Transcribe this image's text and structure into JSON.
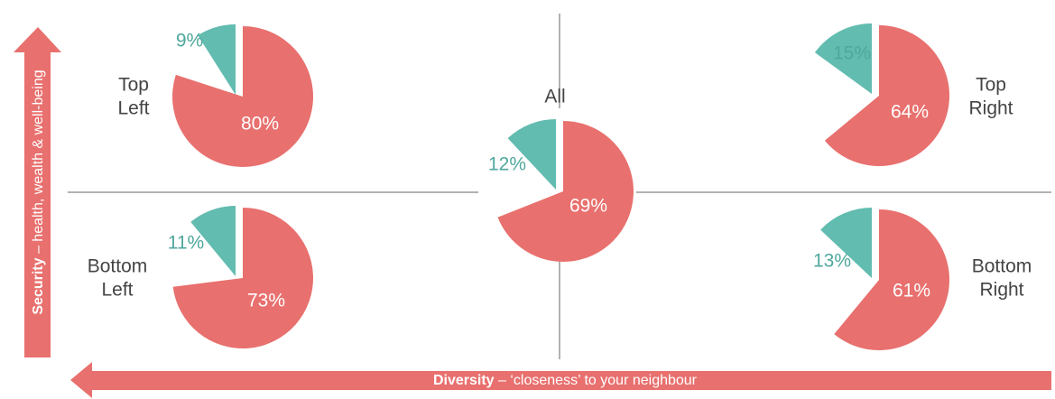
{
  "chart_data": [
    {
      "type": "pie",
      "title_lines": [
        "Top",
        "Left"
      ],
      "values": [
        80,
        9
      ],
      "value_labels": [
        "80%",
        "9%"
      ],
      "colors": [
        "#e8706e",
        "#62bcb0"
      ]
    },
    {
      "type": "pie",
      "title_lines": [
        "Bottom",
        "Left"
      ],
      "values": [
        73,
        11
      ],
      "value_labels": [
        "73%",
        "11%"
      ],
      "colors": [
        "#e8706e",
        "#62bcb0"
      ]
    },
    {
      "type": "pie",
      "title_lines": [
        "All"
      ],
      "values": [
        69,
        12
      ],
      "value_labels": [
        "69%",
        "12%"
      ],
      "colors": [
        "#e8706e",
        "#62bcb0"
      ]
    },
    {
      "type": "pie",
      "title_lines": [
        "Top",
        "Right"
      ],
      "values": [
        64,
        15
      ],
      "value_labels": [
        "64%",
        "15%"
      ],
      "colors": [
        "#e8706e",
        "#62bcb0"
      ]
    },
    {
      "type": "pie",
      "title_lines": [
        "Bottom",
        "Right"
      ],
      "values": [
        61,
        13
      ],
      "value_labels": [
        "61%",
        "13%"
      ],
      "colors": [
        "#e8706e",
        "#62bcb0"
      ]
    }
  ],
  "axes": {
    "y_bold": "Security",
    "y_rest": " – health, wealth & well-being",
    "x_bold": "Diversity",
    "x_rest": " – ‘closeness’ to your neighbour"
  }
}
